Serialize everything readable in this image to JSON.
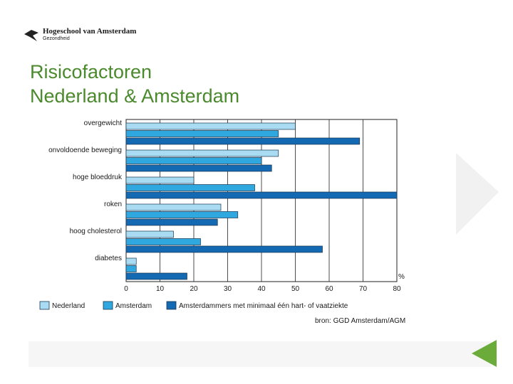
{
  "logo": {
    "name": "Hogeschool van Amsterdam",
    "sub": "Gezondheid"
  },
  "title_line1": "Risicofactoren",
  "title_line2": "Nederland & Amsterdam",
  "source": "bron: GGD Amsterdam/AGM",
  "colors": {
    "title": "#4a8a2c",
    "nederland": "#a9dcf3",
    "amsterdam": "#2fa8e0",
    "amsterdammers": "#1469b3",
    "accent_triangle": "#6bab3a"
  },
  "chart_data": {
    "type": "bar",
    "orientation": "horizontal",
    "categories": [
      "overgewicht",
      "onvoldoende beweging",
      "hoge bloeddruk",
      "roken",
      "hoog cholesterol",
      "diabetes"
    ],
    "series": [
      {
        "name": "Nederland",
        "values": [
          50,
          45,
          20,
          28,
          14,
          3
        ]
      },
      {
        "name": "Amsterdam",
        "values": [
          45,
          40,
          38,
          33,
          22,
          3
        ]
      },
      {
        "name": "Amsterdammers met minimaal één hart- of vaatziekte",
        "values": [
          69,
          43,
          80,
          27,
          58,
          18
        ]
      }
    ],
    "xlim": [
      0,
      80
    ],
    "xticks": [
      0,
      10,
      20,
      30,
      40,
      50,
      60,
      70,
      80
    ],
    "xunit": "%",
    "grid": true,
    "legend": "bottom"
  }
}
